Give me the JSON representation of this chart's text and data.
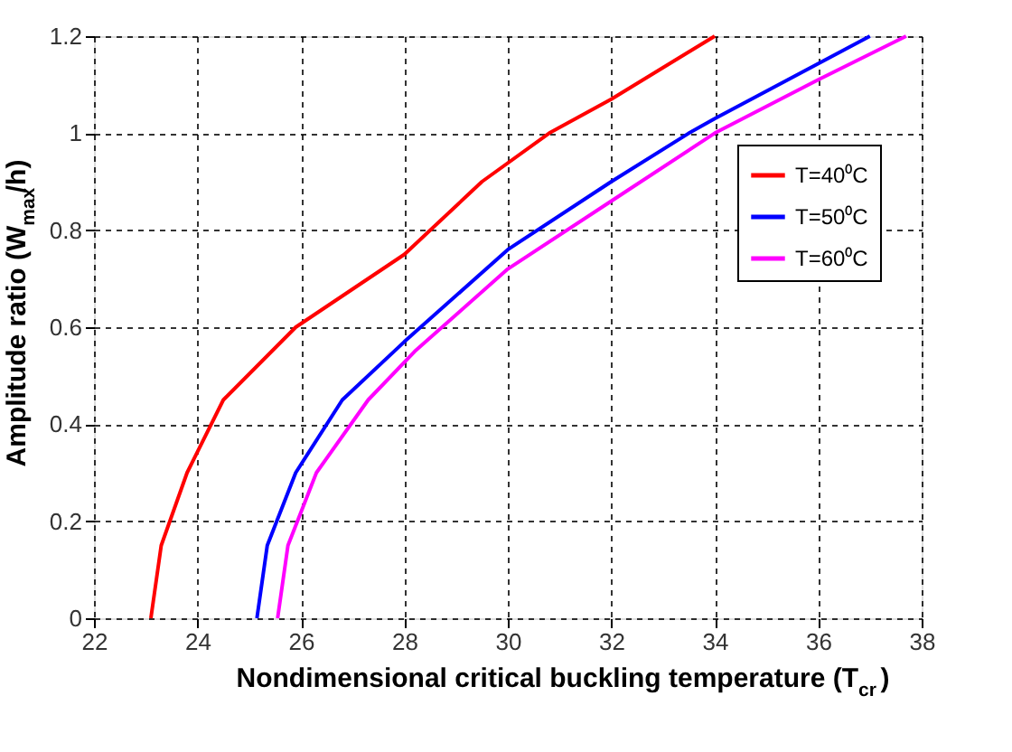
{
  "chart_data": {
    "type": "line",
    "xlabel": "Nondimensional critical buckling temperature (T$_{cr}$)",
    "ylabel": "Amplitude ratio (W$_{max}$/h)",
    "xlim": [
      22,
      38
    ],
    "xticks": [
      22,
      24,
      26,
      28,
      30,
      32,
      34,
      36,
      38
    ],
    "ylim": [
      0,
      1.2
    ],
    "yticks": [
      0,
      0.2,
      0.4,
      0.6,
      0.8,
      1,
      1.2
    ],
    "grid": true,
    "legend": "top right",
    "line_style": "solid",
    "marker": "none",
    "series": [
      {
        "name": "T=40⁰C",
        "color": "#ff0000",
        "x": [
          23.1,
          23.3,
          23.8,
          24.5,
          25.9,
          28,
          29.5,
          30.8,
          32,
          34
        ],
        "values": [
          0,
          0.15,
          0.3,
          0.45,
          0.6,
          0.75,
          0.9,
          1.0,
          1.07,
          1.2
        ]
      },
      {
        "name": "T=50⁰C",
        "color": "#0000ff",
        "x": [
          25.15,
          25.35,
          25.9,
          26.8,
          28,
          30,
          32,
          33.5,
          34,
          37
        ],
        "values": [
          0,
          0.15,
          0.3,
          0.45,
          0.57,
          0.76,
          0.9,
          1.0,
          1.03,
          1.2
        ]
      },
      {
        "name": "T=60⁰C",
        "color": "#ff00ff",
        "x": [
          25.55,
          25.75,
          26.3,
          27.3,
          28.2,
          30,
          32,
          34,
          36,
          37.7
        ],
        "values": [
          0,
          0.15,
          0.3,
          0.45,
          0.55,
          0.72,
          0.86,
          1.0,
          1.11,
          1.2
        ]
      }
    ]
  }
}
